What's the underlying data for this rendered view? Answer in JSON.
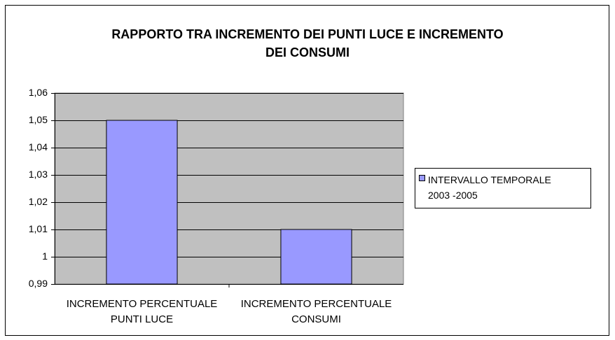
{
  "chart_data": {
    "type": "bar",
    "title": "RAPPORTO TRA INCREMENTO DEI PUNTI LUCE E INCREMENTO DEI CONSUMI",
    "categories": [
      "INCREMENTO PERCENTUALE PUNTI LUCE",
      "INCREMENTO PERCENTUALE CONSUMI"
    ],
    "series": [
      {
        "name": "INTERVALLO TEMPORALE 2003 -2005",
        "color": "#9999ff",
        "values": [
          1.05,
          1.01
        ]
      }
    ],
    "ylim": [
      0.99,
      1.06
    ],
    "yticks": [
      {
        "value": 0.99,
        "label": "0,99"
      },
      1,
      {
        "value": 1.01,
        "label": "1,01"
      },
      {
        "value": 1.02,
        "label": "1,02"
      },
      {
        "value": 1.03,
        "label": "1,03"
      },
      {
        "value": 1.04,
        "label": "1,04"
      },
      {
        "value": 1.05,
        "label": "1,05"
      },
      {
        "value": 1.06,
        "label": "1,06"
      }
    ],
    "grid": true,
    "legend": "right",
    "plot_background": "#c0c0c0"
  }
}
